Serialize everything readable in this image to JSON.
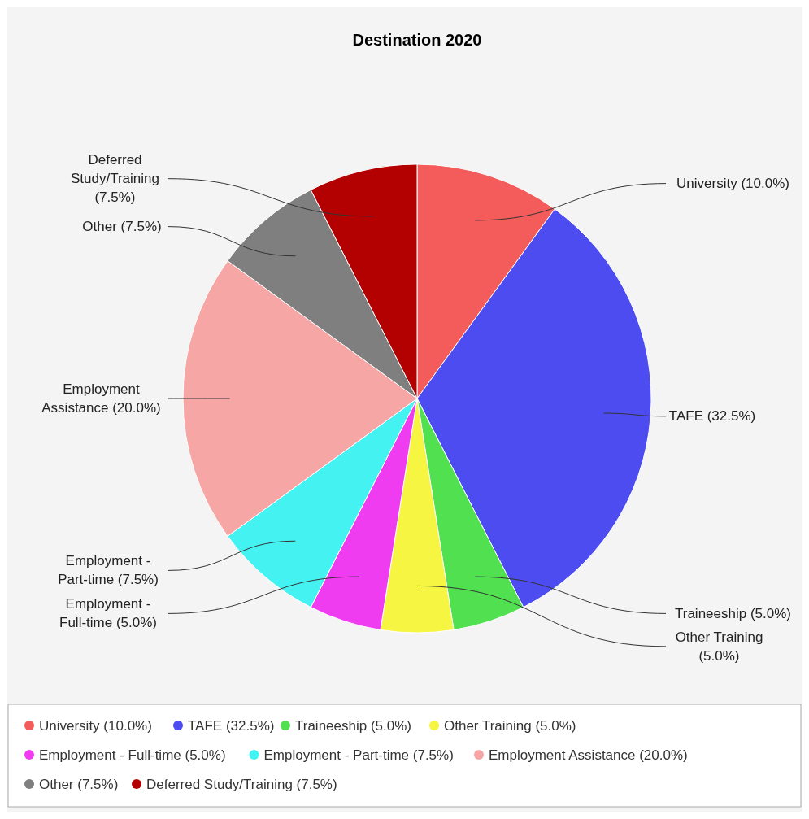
{
  "chart_data": {
    "type": "pie",
    "title": "Destination 2020",
    "categories": [
      "University",
      "TAFE",
      "Traineeship",
      "Other Training",
      "Employment - Full-time",
      "Employment - Part-time",
      "Employment Assistance",
      "Other",
      "Deferred Study/Training"
    ],
    "values": [
      10.0,
      32.5,
      5.0,
      5.0,
      5.0,
      7.5,
      20.0,
      7.5,
      7.5
    ],
    "value_labels": [
      "(10.0%)",
      "(32.5%)",
      "(5.0%)",
      "(5.0%)",
      "(5.0%)",
      "(7.5%)",
      "(20.0%)",
      "(7.5%)",
      "(7.5%)"
    ],
    "colors": [
      "#f45b5b",
      "#4c4cf0",
      "#50e050",
      "#f5f542",
      "#f03cf0",
      "#44f2f2",
      "#f7a6a6",
      "#7f7f7f",
      "#b30000"
    ],
    "legend": "bottom"
  }
}
